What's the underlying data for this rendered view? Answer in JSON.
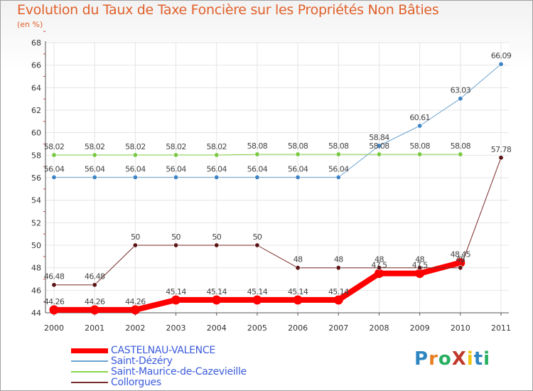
{
  "title": "Evolution du Taux de Taxe Foncière sur les Propriétés Non Bâties",
  "unit_label": "(en %)",
  "logo": {
    "text": "ProXiti",
    "colors": [
      "#2e86c1",
      "#e67e22",
      "#27ae60",
      "#c0392b",
      "#f1c40f",
      "#2e86c1",
      "#27ae60"
    ]
  },
  "chart_data": {
    "type": "line",
    "x": [
      "2000",
      "2001",
      "2002",
      "2003",
      "2004",
      "2005",
      "2006",
      "2007",
      "2008",
      "2009",
      "2010",
      "2011"
    ],
    "ylim": [
      44,
      68
    ],
    "yticks": [
      44,
      46,
      48,
      50,
      52,
      54,
      56,
      58,
      60,
      62,
      64,
      66,
      68
    ],
    "grid": true,
    "legend_position": "bottom-left",
    "series": [
      {
        "name": "CASTELNAU-VALENCE",
        "color": "#ff0000",
        "width": 8,
        "values": [
          44.26,
          44.26,
          44.26,
          45.14,
          45.14,
          45.14,
          45.14,
          45.14,
          47.5,
          47.5,
          48.45,
          null
        ],
        "labels": [
          "44.26",
          "44.26",
          "44.26",
          "45.14",
          "45.14",
          "45.14",
          "45.14",
          "45.14",
          "47.5",
          "47.5",
          "48.45",
          ""
        ]
      },
      {
        "name": "Saint-Dézéry",
        "color": "#6ea3d0",
        "marker": "#3d84c6",
        "width": 1,
        "values": [
          56.04,
          56.04,
          56.04,
          56.04,
          56.04,
          56.04,
          56.04,
          56.04,
          58.84,
          60.61,
          63.03,
          66.09
        ],
        "labels": [
          "56.04",
          "56.04",
          "56.04",
          "56.04",
          "56.04",
          "56.04",
          "56.04",
          "56.04",
          "58.84",
          "60.61",
          "63.03",
          "66.09"
        ]
      },
      {
        "name": "Saint-Maurice-de-Cazevieille",
        "color": "#86d54a",
        "marker": "#7ac943",
        "width": 1,
        "values": [
          58.02,
          58.02,
          58.02,
          58.02,
          58.02,
          58.08,
          58.08,
          58.08,
          58.08,
          58.08,
          58.08,
          null
        ],
        "labels": [
          "58.02",
          "58.02",
          "58.02",
          "58.02",
          "58.02",
          "58.08",
          "58.08",
          "58.08",
          "58.08",
          "58.08",
          "58.08",
          ""
        ]
      },
      {
        "name": "Collorgues",
        "color": "#7a2a2a",
        "marker": "#5c1414",
        "width": 1,
        "values": [
          46.48,
          46.48,
          50,
          50,
          50,
          50,
          48,
          48,
          48,
          48,
          48,
          57.78
        ],
        "labels": [
          "46.48",
          "46.48",
          "50",
          "50",
          "50",
          "50",
          "48",
          "48",
          "48",
          "48",
          "48",
          "57.78"
        ]
      }
    ]
  }
}
